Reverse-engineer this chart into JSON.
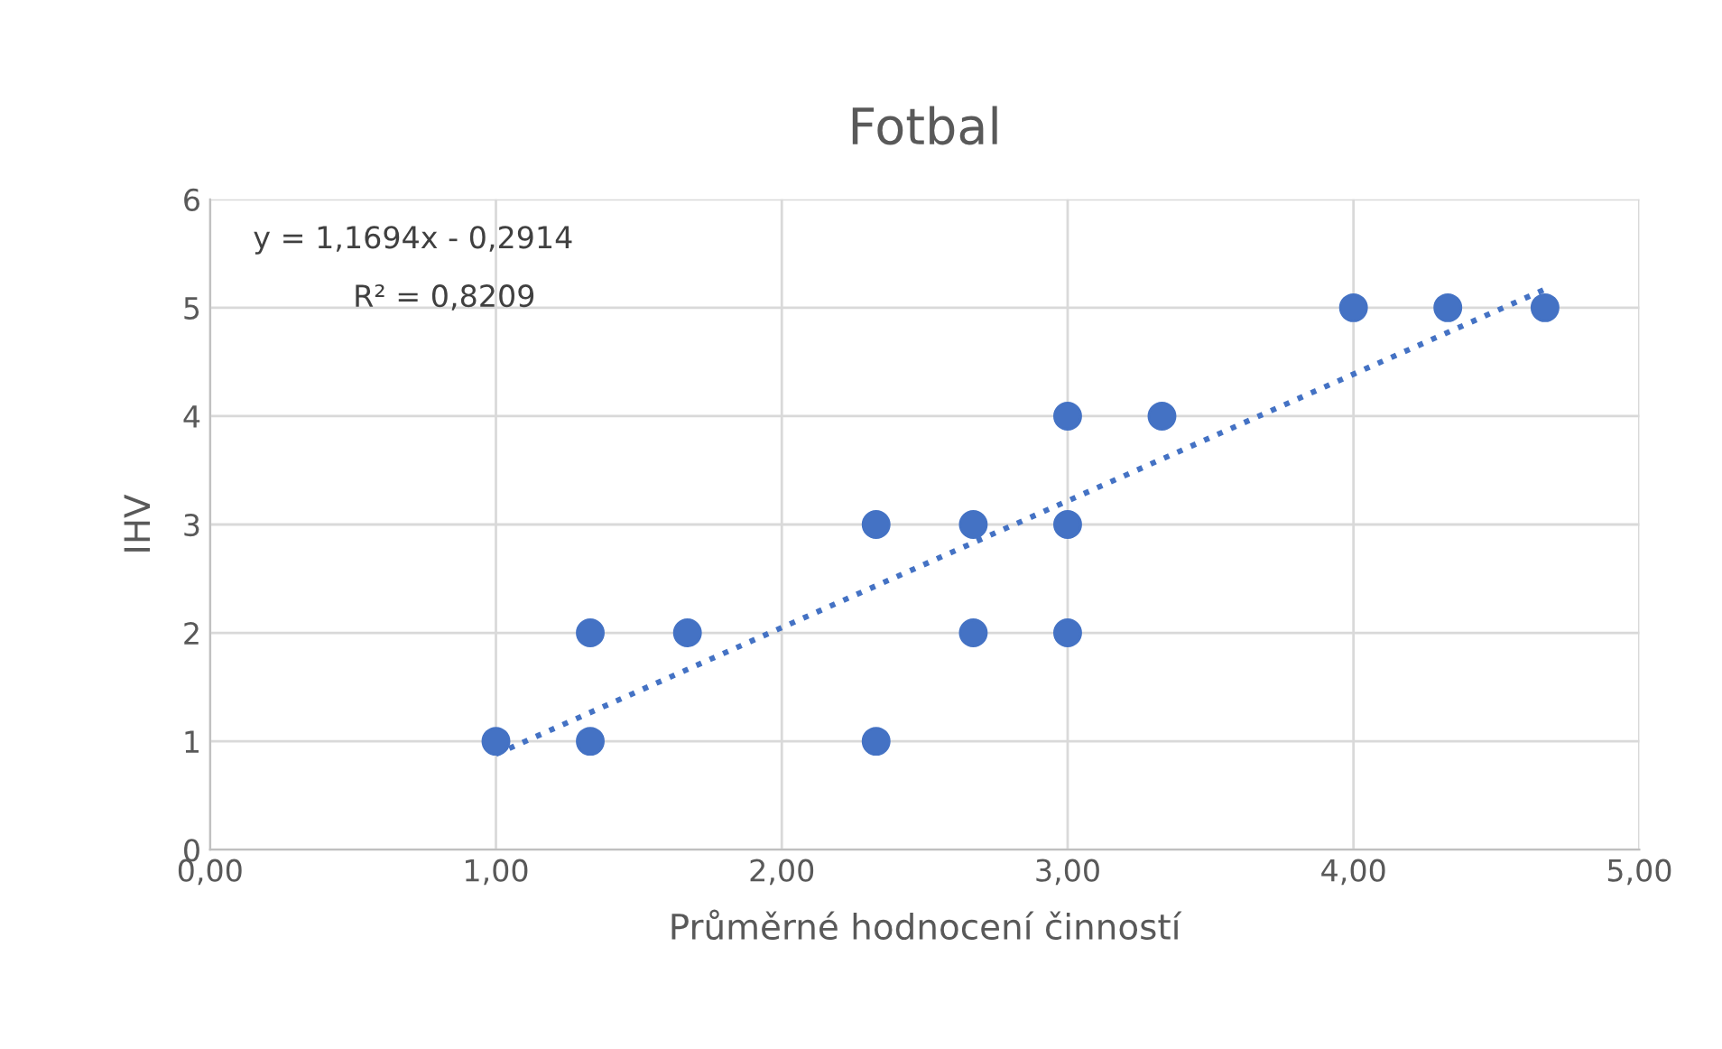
{
  "chart_data": {
    "type": "scatter",
    "title": "Fotbal",
    "xlabel": "Průměrné hodnocení činností",
    "ylabel": "IHV",
    "series": [
      {
        "color": "#4472c4",
        "marker": "circle",
        "x": [
          1.0,
          1.33,
          1.33,
          1.67,
          2.33,
          2.33,
          2.67,
          2.67,
          3.0,
          3.0,
          3.0,
          3.33,
          4.0,
          4.33,
          4.67
        ],
        "values": [
          1,
          1,
          2,
          2,
          3,
          1,
          3,
          2,
          4,
          3,
          2,
          4,
          5,
          5,
          5
        ]
      },
      {
        "type": "line",
        "color": "#4472c4",
        "line_style": "dotted",
        "marker": "none",
        "x": [
          1.0,
          4.67
        ],
        "values": [
          0.88,
          5.17
        ]
      }
    ],
    "annotations": [
      "y = 1,1694x - 0,2914",
      "R² = 0,8209"
    ],
    "xlim": [
      0,
      5
    ],
    "xticks": [
      {
        "value": 0,
        "label": "0,00"
      },
      {
        "value": 1,
        "label": "1,00"
      },
      {
        "value": 2,
        "label": "2,00"
      },
      {
        "value": 3,
        "label": "3,00"
      },
      {
        "value": 4,
        "label": "4,00"
      },
      {
        "value": 5,
        "label": "5,00"
      }
    ],
    "ylim": [
      0,
      6
    ],
    "yticks": [
      0,
      1,
      2,
      3,
      4,
      5,
      6
    ],
    "grid": true,
    "legend": false
  }
}
